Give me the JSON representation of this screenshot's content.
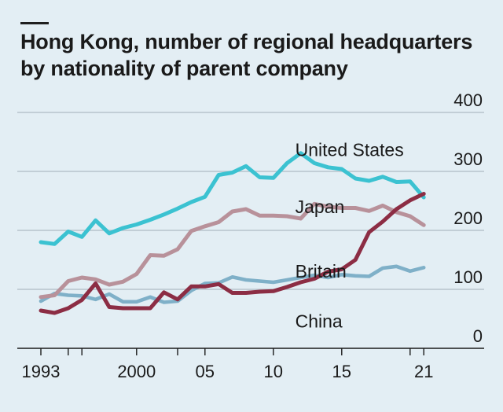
{
  "title_lines": [
    "Hong Kong, number of regional headquarters",
    "by nationality of parent company"
  ],
  "chart_data": {
    "type": "line",
    "title": "Hong Kong, number of regional headquarters by nationality of parent company",
    "xlabel": "",
    "ylabel": "",
    "xlim": [
      1993,
      2022
    ],
    "ylim": [
      0,
      400
    ],
    "y_ticks": [
      0,
      100,
      200,
      300,
      400
    ],
    "x_ticks": [
      1993,
      1995,
      1996,
      2000,
      2003,
      2005,
      2010,
      2015,
      2020,
      2021
    ],
    "x_tick_labels": [
      {
        "x": 1993,
        "label": "1993"
      },
      {
        "x": 2000,
        "label": "2000"
      },
      {
        "x": 2005,
        "label": "05"
      },
      {
        "x": 2010,
        "label": "10"
      },
      {
        "x": 2015,
        "label": "15"
      },
      {
        "x": 2021,
        "label": "21"
      }
    ],
    "x": [
      1993,
      1994,
      1995,
      1996,
      1997,
      1998,
      1999,
      2000,
      2001,
      2002,
      2003,
      2004,
      2005,
      2006,
      2007,
      2008,
      2009,
      2010,
      2011,
      2012,
      2013,
      2014,
      2015,
      2016,
      2017,
      2018,
      2019,
      2020,
      2021
    ],
    "series": [
      {
        "name": "United States",
        "color": "#3bc2d1",
        "values": [
          180,
          177,
          198,
          189,
          217,
          195,
          204,
          210,
          218,
          227,
          237,
          248,
          257,
          294,
          298,
          309,
          290,
          289,
          314,
          331,
          314,
          307,
          304,
          288,
          284,
          291,
          282,
          283,
          256
        ]
      },
      {
        "name": "Japan",
        "color": "#b8919a",
        "values": [
          87,
          90,
          114,
          120,
          117,
          108,
          113,
          126,
          158,
          157,
          168,
          199,
          207,
          214,
          232,
          236,
          225,
          225,
          224,
          220,
          245,
          240,
          238,
          238,
          233,
          242,
          231,
          224,
          209
        ]
      },
      {
        "name": "Britain",
        "color": "#7fb0c8",
        "values": [
          80,
          93,
          90,
          89,
          83,
          92,
          79,
          79,
          87,
          78,
          80,
          98,
          110,
          111,
          121,
          116,
          114,
          112,
          116,
          120,
          124,
          120,
          125,
          123,
          122,
          136,
          139,
          131,
          137
        ]
      },
      {
        "name": "China",
        "color": "#8c2d44",
        "values": [
          64,
          60,
          68,
          82,
          110,
          70,
          68,
          68,
          68,
          95,
          83,
          105,
          105,
          109,
          94,
          94,
          96,
          97,
          104,
          112,
          118,
          130,
          134,
          150,
          197,
          215,
          236,
          251,
          262
        ]
      }
    ],
    "series_labels": {
      "United States": {
        "x": 2011.6,
        "y": 337
      },
      "Japan": {
        "x": 2011.6,
        "y": 240
      },
      "Britain": {
        "x": 2011.6,
        "y": 131
      },
      "China": {
        "x": 2011.6,
        "y": 46
      }
    },
    "grid": true
  }
}
